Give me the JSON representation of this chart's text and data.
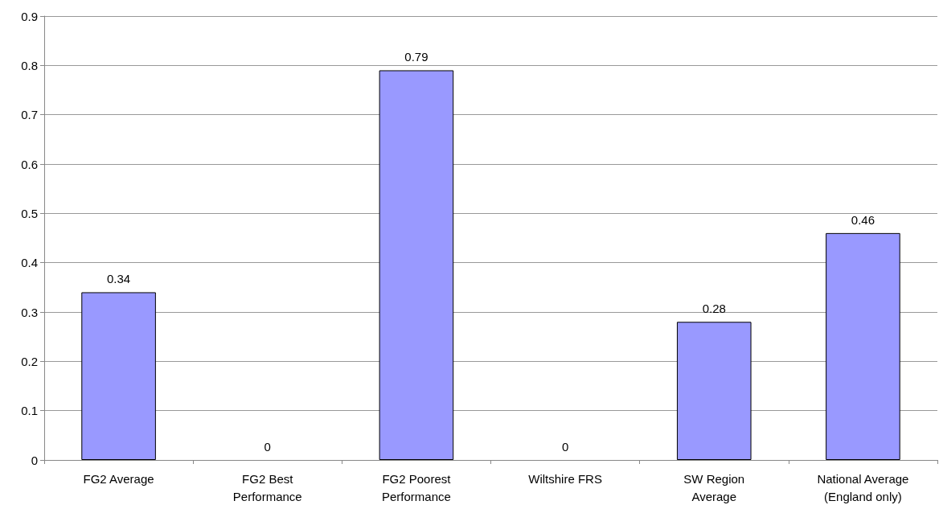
{
  "chart_data": {
    "type": "bar",
    "categories": [
      "FG2 Average",
      "FG2 Best\nPerformance",
      "FG2 Poorest\nPerformance",
      "Wiltshire FRS",
      "SW Region\nAverage",
      "National Average\n(England only)"
    ],
    "values": [
      0.34,
      0,
      0.79,
      0,
      0.28,
      0.46
    ],
    "color": "#9999ff",
    "ylim": [
      0,
      0.9
    ],
    "yticks": [
      0,
      0.1,
      0.2,
      0.3,
      0.4,
      0.5,
      0.6,
      0.7,
      0.8,
      0.9
    ],
    "grid": "y",
    "data_labels": true
  }
}
